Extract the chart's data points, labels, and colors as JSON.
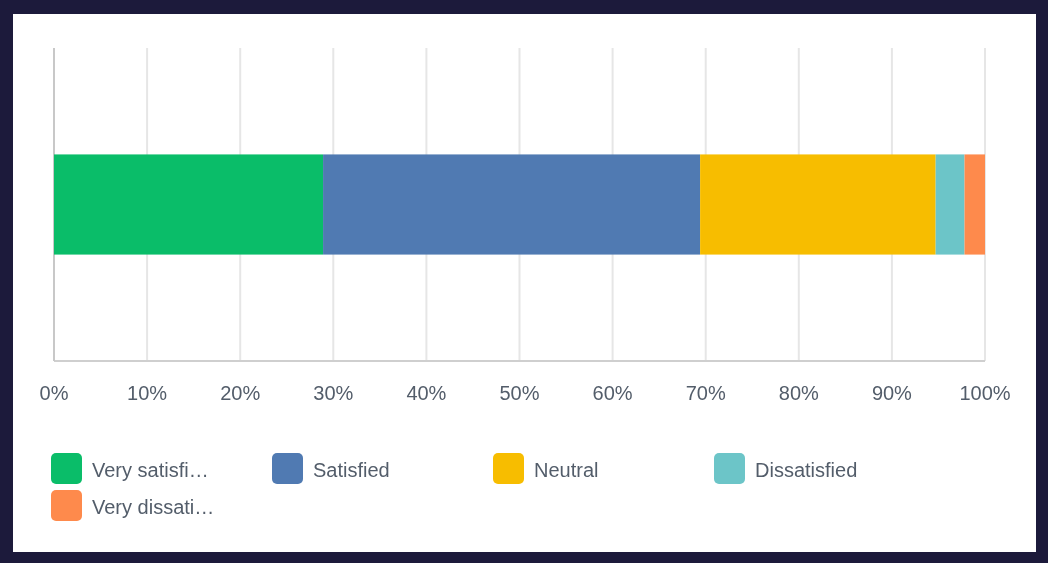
{
  "chart_data": {
    "type": "bar",
    "orientation": "horizontal",
    "stacked": true,
    "categories": [
      null
    ],
    "series": [
      {
        "name": "Very satisfi…",
        "color": "#0abd69",
        "values": [
          28.9
        ]
      },
      {
        "name": "Satisfied",
        "color": "#507ab2",
        "values": [
          40.5
        ]
      },
      {
        "name": "Neutral",
        "color": "#f7bd00",
        "values": [
          25.3
        ]
      },
      {
        "name": "Dissatisfied",
        "color": "#6cc5c8",
        "values": [
          3.1
        ]
      },
      {
        "name": "Very dissati…",
        "color": "#fe8a4c",
        "values": [
          2.2
        ]
      }
    ],
    "xlim": [
      0,
      100
    ],
    "xticks": [
      {
        "value": 0,
        "label": "0%"
      },
      {
        "value": 10,
        "label": "10%"
      },
      {
        "value": 20,
        "label": "20%"
      },
      {
        "value": 30,
        "label": "30%"
      },
      {
        "value": 40,
        "label": "40%"
      },
      {
        "value": 50,
        "label": "50%"
      },
      {
        "value": 60,
        "label": "60%"
      },
      {
        "value": 70,
        "label": "70%"
      },
      {
        "value": 80,
        "label": "80%"
      },
      {
        "value": 90,
        "label": "90%"
      },
      {
        "value": 100,
        "label": "100%"
      }
    ],
    "grid": "x",
    "legend": "bottom"
  }
}
